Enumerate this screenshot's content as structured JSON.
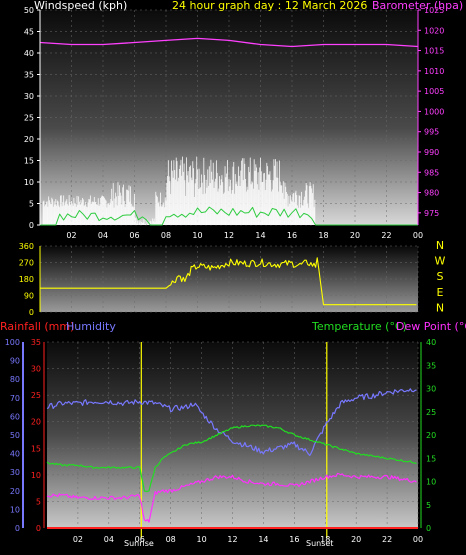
{
  "colors": {
    "background": "#000000",
    "axis_text": "#ffffff",
    "wind_gust": "#ffffff",
    "wind_avg": "#2ecc40",
    "wind_light": "#d7ffd0",
    "barometer": "#ff40ff",
    "direction": "#ffff00",
    "rainfall": "#ff2020",
    "humidity": "#7878ff",
    "temperature": "#22dd22",
    "dewpoint": "#ff30ff",
    "title": "#ffff00",
    "sun_markers": "#ffff00"
  },
  "header": {
    "wind_label": "Windspeed (kph)",
    "title": "24 hour graph day : 12 March 2026",
    "baro_label": "Barometer (hpa)"
  },
  "compass": [
    "N",
    "W",
    "S",
    "E",
    "N"
  ],
  "legend": {
    "rainfall": "Rainfall (mm)",
    "humidity": "Humidity",
    "temperature": "Temperature (°C)",
    "dewpoint": "Dew Point (°C)"
  },
  "sun_labels": {
    "rise": "Sunrise",
    "set": "Sunset"
  },
  "chart_data": [
    {
      "type": "area",
      "name": "wind_and_barometer",
      "x_ticks": [
        "02",
        "04",
        "06",
        "08",
        "10",
        "12",
        "14",
        "16",
        "18",
        "20",
        "22",
        "00"
      ],
      "left_axis": {
        "label": "Windspeed (kph)",
        "ylim": [
          0,
          50
        ],
        "ticks": [
          0,
          5,
          10,
          15,
          20,
          25,
          30,
          35,
          40,
          45,
          50
        ]
      },
      "right_axis": {
        "label": "Barometer (hpa)",
        "ylim": [
          972,
          1025
        ],
        "ticks": [
          975,
          980,
          985,
          990,
          995,
          1000,
          1005,
          1010,
          1015,
          1020,
          1025
        ]
      },
      "series": [
        {
          "name": "Barometer (hpa)",
          "x": [
            0,
            2,
            4,
            6,
            8,
            10,
            12,
            14,
            16,
            18,
            20,
            22,
            24
          ],
          "y": [
            1017,
            1016.5,
            1016.5,
            1017,
            1017.5,
            1018,
            1017.5,
            1016.5,
            1016,
            1016.5,
            1016.5,
            1016.5,
            1016
          ]
        }
      ]
    },
    {
      "type": "line",
      "name": "wind_direction",
      "x_ticks": [
        "02",
        "04",
        "06",
        "08",
        "10",
        "12",
        "14",
        "16",
        "18",
        "20",
        "22",
        "00"
      ],
      "left_axis": {
        "ylim": [
          0,
          360
        ],
        "ticks": [
          0,
          90,
          180,
          270,
          360
        ]
      },
      "right_labels": [
        "N",
        "W",
        "S",
        "E",
        "N"
      ],
      "series": [
        {
          "name": "Wind direction (deg)",
          "x": [
            0,
            2,
            4,
            6,
            8,
            8.3,
            8.8,
            9.2,
            9.6,
            10,
            11,
            12,
            13,
            14,
            15,
            16,
            16.5,
            17,
            17.5,
            17.6,
            18,
            20,
            22,
            24
          ],
          "y": [
            130,
            130,
            130,
            130,
            130,
            150,
            200,
            170,
            230,
            250,
            240,
            270,
            265,
            270,
            260,
            265,
            255,
            270,
            250,
            300,
            40,
            40,
            40,
            40
          ]
        }
      ]
    },
    {
      "type": "line",
      "name": "temperature_humidity",
      "x_ticks": [
        "02",
        "04",
        "06",
        "08",
        "10",
        "12",
        "14",
        "16",
        "18",
        "20",
        "22",
        "00"
      ],
      "left_axis_humidity": {
        "label": "Humidity",
        "ylim": [
          0,
          100
        ],
        "ticks": [
          0,
          10,
          20,
          30,
          40,
          50,
          60,
          70,
          80,
          90,
          100
        ]
      },
      "left_axis_rain": {
        "label": "Rainfall (mm)",
        "ylim": [
          0,
          35
        ],
        "ticks": [
          0,
          5,
          10,
          15,
          20,
          25,
          30,
          35
        ]
      },
      "right_axis": {
        "label": "Temperature (°C) / Dew Point (°C)",
        "ylim": [
          0,
          40
        ],
        "ticks": [
          0,
          5,
          10,
          15,
          20,
          25,
          30,
          35,
          40
        ]
      },
      "sunrise_hour": 6.1,
      "sunset_hour": 18.1,
      "series": [
        {
          "name": "Humidity",
          "x": [
            0,
            1,
            2,
            3,
            4,
            5,
            6,
            7,
            8,
            9,
            9.5,
            10,
            11,
            12,
            13,
            14,
            15,
            16,
            17,
            18,
            19,
            20,
            21,
            22,
            23,
            24
          ],
          "y": [
            65,
            67,
            67,
            68,
            68,
            67,
            68,
            67,
            64,
            65,
            67,
            62,
            53,
            47,
            44,
            41,
            43,
            45,
            40,
            55,
            67,
            70,
            71,
            73,
            74,
            75
          ]
        },
        {
          "name": "Temperature (°C)",
          "x": [
            0,
            1,
            2,
            3,
            4,
            5,
            6,
            6.3,
            6.6,
            7,
            7.5,
            8,
            9,
            10,
            11,
            12,
            13,
            14,
            15,
            16,
            17,
            18,
            19,
            20,
            21,
            22,
            23,
            24
          ],
          "y": [
            14,
            13.5,
            13.5,
            13,
            13,
            13,
            13,
            8,
            8,
            13,
            15,
            16,
            18,
            18.5,
            20,
            21.5,
            22,
            22,
            21.5,
            20,
            19,
            18,
            17,
            16,
            15.5,
            15,
            14.5,
            14
          ]
        },
        {
          "name": "Dew Point (°C)",
          "x": [
            0,
            1,
            2,
            3,
            4,
            5,
            6,
            6.3,
            6.6,
            7,
            7.5,
            8,
            9,
            10,
            11,
            12,
            13,
            14,
            15,
            16,
            17,
            18,
            19,
            20,
            21,
            22,
            23,
            24
          ],
          "y": [
            7,
            7,
            6.5,
            6.5,
            6.5,
            6.5,
            7,
            1.5,
            1.5,
            7.5,
            8,
            8,
            9,
            10,
            11,
            11,
            10,
            9.5,
            9.5,
            9,
            10,
            11,
            11.5,
            11,
            11,
            11,
            10.5,
            10
          ]
        },
        {
          "name": "Rainfall (mm)",
          "x": [
            0,
            24
          ],
          "y": [
            0,
            0
          ]
        }
      ]
    }
  ]
}
